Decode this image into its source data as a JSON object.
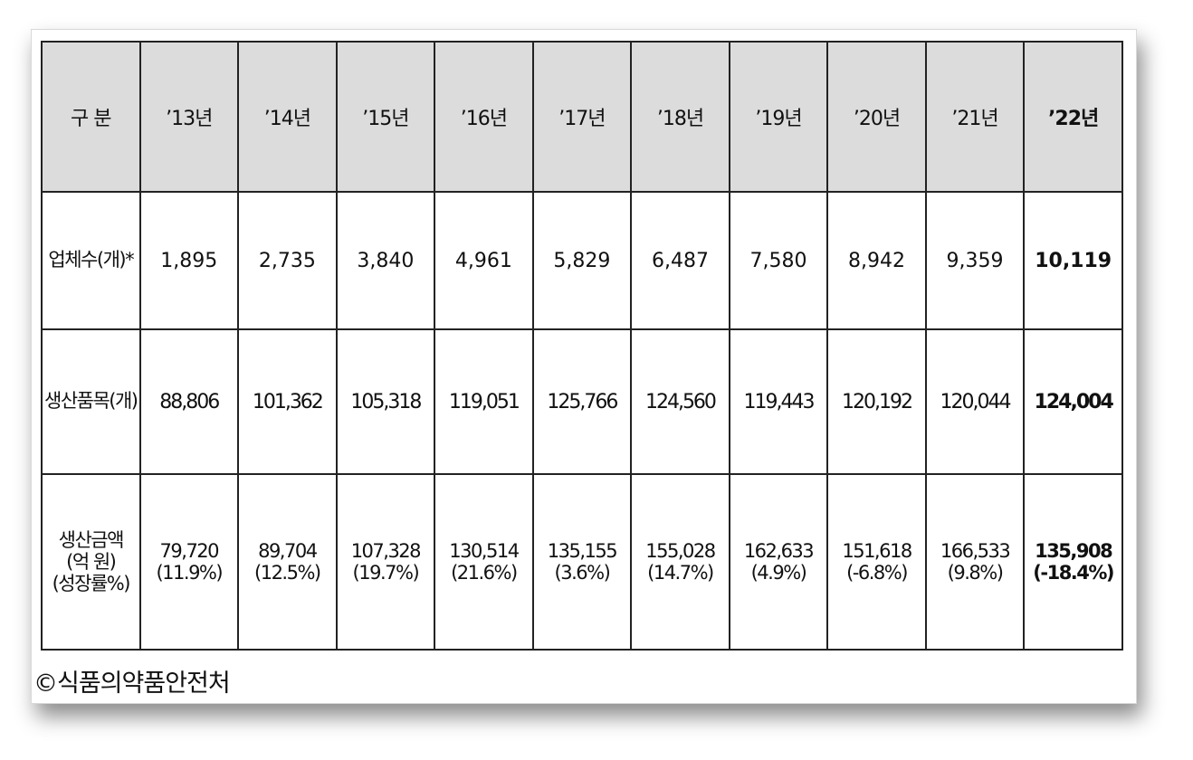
{
  "table": {
    "header": [
      "구 분",
      "’13년",
      "’14년",
      "’15년",
      "’16년",
      "’17년",
      "’18년",
      "’19년",
      "’20년",
      "’21년",
      "’22년"
    ],
    "rows": [
      {
        "label": "업체수(개)*",
        "values": [
          "1,895",
          "2,735",
          "3,840",
          "4,961",
          "5,829",
          "6,487",
          "7,580",
          "8,942",
          "9,359",
          "10,119"
        ]
      },
      {
        "label": "생산품목(개)",
        "values": [
          "88,806",
          "101,362",
          "105,318",
          "119,051",
          "125,766",
          "124,560",
          "119,443",
          "120,192",
          "120,044",
          "124,004"
        ]
      },
      {
        "label_lines": [
          "생산금액",
          "(억 원)",
          "(성장률%)"
        ],
        "values": [
          [
            "79,720",
            "(11.9%)"
          ],
          [
            "89,704",
            "(12.5%)"
          ],
          [
            "107,328",
            "(19.7%)"
          ],
          [
            "130,514",
            "(21.6%)"
          ],
          [
            "135,155",
            "(3.6%)"
          ],
          [
            "155,028",
            "(14.7%)"
          ],
          [
            "162,633",
            "(4.9%)"
          ],
          [
            "151,618",
            "(-6.8%)"
          ],
          [
            "166,533",
            "(9.8%)"
          ],
          [
            "135,908",
            "(-18.4%)"
          ]
        ]
      }
    ]
  },
  "source": "©식품의약품안전처"
}
